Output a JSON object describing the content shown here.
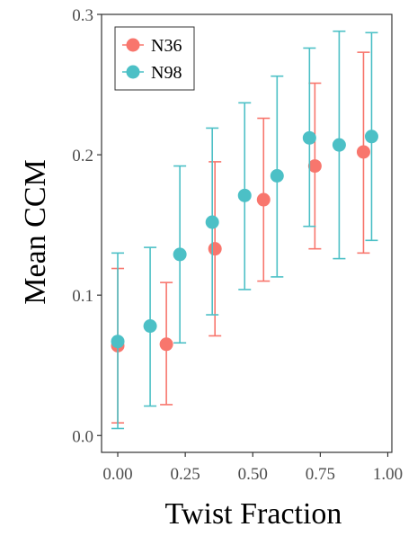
{
  "chart_data": {
    "type": "scatter",
    "title": "",
    "xlabel": "Twist Fraction",
    "ylabel": "Mean CCM",
    "xlim": [
      -0.06,
      1.015
    ],
    "ylim": [
      -0.012,
      0.3
    ],
    "x_ticks": [
      0.0,
      0.25,
      0.5,
      0.75,
      1.0
    ],
    "x_tick_labels": [
      "0.00",
      "0.25",
      "0.50",
      "0.75",
      "1.00"
    ],
    "y_ticks": [
      0.0,
      0.1,
      0.2,
      0.3
    ],
    "y_tick_labels": [
      "0.0",
      "0.1",
      "0.2",
      "0.3"
    ],
    "grid": false,
    "legend_position": "top-left",
    "error_bars": true,
    "series": [
      {
        "name": "N36",
        "color": "#F8766D",
        "points": [
          {
            "x": 0.0,
            "y": 0.064,
            "lo": 0.009,
            "hi": 0.119
          },
          {
            "x": 0.18,
            "y": 0.065,
            "lo": 0.022,
            "hi": 0.109
          },
          {
            "x": 0.36,
            "y": 0.133,
            "lo": 0.071,
            "hi": 0.195
          },
          {
            "x": 0.54,
            "y": 0.168,
            "lo": 0.11,
            "hi": 0.226
          },
          {
            "x": 0.73,
            "y": 0.192,
            "lo": 0.133,
            "hi": 0.251
          },
          {
            "x": 0.91,
            "y": 0.202,
            "lo": 0.13,
            "hi": 0.273
          }
        ]
      },
      {
        "name": "N98",
        "color": "#4CC0C6",
        "points": [
          {
            "x": 0.0,
            "y": 0.067,
            "lo": 0.005,
            "hi": 0.13
          },
          {
            "x": 0.12,
            "y": 0.078,
            "lo": 0.021,
            "hi": 0.134
          },
          {
            "x": 0.23,
            "y": 0.129,
            "lo": 0.066,
            "hi": 0.192
          },
          {
            "x": 0.35,
            "y": 0.152,
            "lo": 0.086,
            "hi": 0.219
          },
          {
            "x": 0.47,
            "y": 0.171,
            "lo": 0.104,
            "hi": 0.237
          },
          {
            "x": 0.59,
            "y": 0.185,
            "lo": 0.113,
            "hi": 0.256
          },
          {
            "x": 0.71,
            "y": 0.212,
            "lo": 0.149,
            "hi": 0.276
          },
          {
            "x": 0.82,
            "y": 0.207,
            "lo": 0.126,
            "hi": 0.288
          },
          {
            "x": 0.94,
            "y": 0.213,
            "lo": 0.139,
            "hi": 0.287
          }
        ]
      }
    ]
  }
}
